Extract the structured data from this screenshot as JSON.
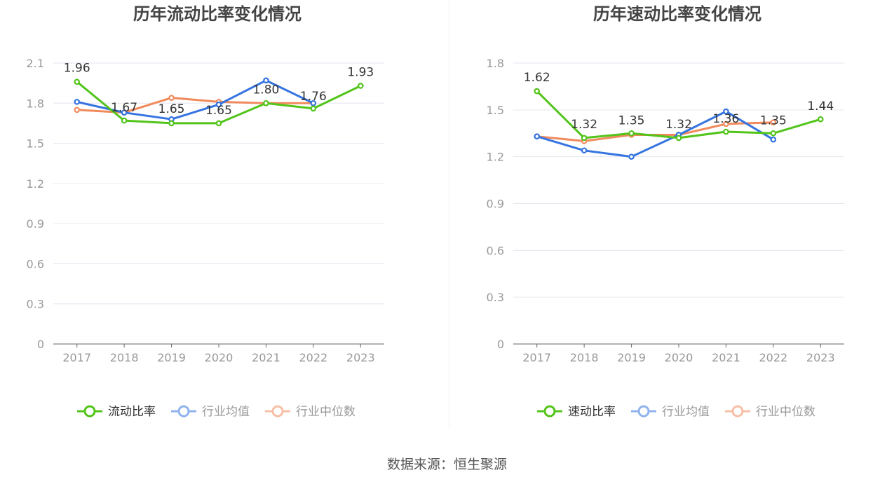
{
  "source_label": "数据来源：恒生聚源",
  "colors": {
    "primary": "#52c41a",
    "avg": "#3574e0",
    "median": "#f08a5d",
    "axis": "#666666",
    "grid": "#e6e6f0",
    "tick": "#999999",
    "title": "#444444"
  },
  "chart_data": [
    {
      "type": "line",
      "title": "历年流动比率变化情况",
      "categories": [
        "2017",
        "2018",
        "2019",
        "2020",
        "2021",
        "2022",
        "2023"
      ],
      "ylim": [
        0,
        2.1
      ],
      "yticks": [
        "0",
        "0.3",
        "0.6",
        "0.9",
        "1.2",
        "1.5",
        "1.8",
        "2.1"
      ],
      "grid": true,
      "legend_position": "bottom",
      "series": [
        {
          "name": "流动比率",
          "color_key": "primary",
          "values": [
            1.96,
            1.67,
            1.65,
            1.65,
            1.8,
            1.76,
            1.93
          ],
          "labels": [
            "1.96",
            "1.67",
            "1.65",
            "1.65",
            "1.80",
            "1.76",
            "1.93"
          ]
        },
        {
          "name": "行业均值",
          "color_key": "avg",
          "values": [
            1.81,
            1.73,
            1.68,
            1.79,
            1.97,
            1.8,
            null
          ]
        },
        {
          "name": "行业中位数",
          "color_key": "median",
          "values": [
            1.75,
            1.73,
            1.84,
            1.81,
            1.8,
            1.8,
            null
          ]
        }
      ]
    },
    {
      "type": "line",
      "title": "历年速动比率变化情况",
      "categories": [
        "2017",
        "2018",
        "2019",
        "2020",
        "2021",
        "2022",
        "2023"
      ],
      "ylim": [
        0,
        1.8
      ],
      "yticks": [
        "0",
        "0.3",
        "0.6",
        "0.9",
        "1.2",
        "1.5",
        "1.8"
      ],
      "grid": true,
      "legend_position": "bottom",
      "series": [
        {
          "name": "速动比率",
          "color_key": "primary",
          "values": [
            1.62,
            1.32,
            1.35,
            1.32,
            1.36,
            1.35,
            1.44
          ],
          "labels": [
            "1.62",
            "1.32",
            "1.35",
            "1.32",
            "1.36",
            "1.35",
            "1.44"
          ]
        },
        {
          "name": "行业均值",
          "color_key": "avg",
          "values": [
            1.33,
            1.24,
            1.2,
            1.34,
            1.49,
            1.31,
            null
          ]
        },
        {
          "name": "行业中位数",
          "color_key": "median",
          "values": [
            1.33,
            1.3,
            1.34,
            1.34,
            1.41,
            1.42,
            null
          ]
        }
      ]
    }
  ]
}
